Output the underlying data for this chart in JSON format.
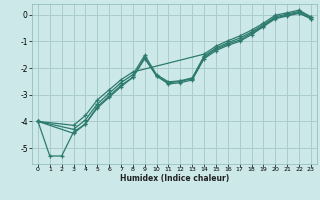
{
  "title": "",
  "xlabel": "Humidex (Indice chaleur)",
  "ylabel": "",
  "background_color": "#cce8e8",
  "grid_color": "#aacccc",
  "line_color": "#2d7a6e",
  "xlim": [
    -0.5,
    23.5
  ],
  "ylim": [
    -5.6,
    0.4
  ],
  "xticks": [
    0,
    1,
    2,
    3,
    4,
    5,
    6,
    7,
    8,
    9,
    10,
    11,
    12,
    13,
    14,
    15,
    16,
    17,
    18,
    19,
    20,
    21,
    22,
    23
  ],
  "yticks": [
    0,
    -1,
    -2,
    -3,
    -4,
    -5
  ],
  "series": [
    {
      "x": [
        0,
        1,
        2,
        3,
        4,
        5,
        6,
        7,
        8,
        9,
        10,
        11,
        12,
        13,
        14,
        15,
        16,
        17,
        18,
        19,
        20,
        21,
        22,
        23
      ],
      "y": [
        -4.0,
        -5.3,
        -5.3,
        -4.4,
        -4.1,
        -3.5,
        -3.1,
        -2.7,
        -2.35,
        -1.65,
        -2.3,
        -2.6,
        -2.55,
        -2.45,
        -1.65,
        -1.35,
        -1.15,
        -1.0,
        -0.75,
        -0.45,
        -0.15,
        -0.05,
        0.05,
        -0.15
      ]
    },
    {
      "x": [
        0,
        3,
        4,
        5,
        6,
        7,
        8,
        9,
        10,
        11,
        12,
        13,
        14,
        15,
        16,
        17,
        18,
        19,
        20,
        21,
        22,
        23
      ],
      "y": [
        -4.0,
        -4.45,
        -4.1,
        -3.45,
        -3.05,
        -2.65,
        -2.35,
        -1.6,
        -2.3,
        -2.55,
        -2.5,
        -2.4,
        -1.6,
        -1.3,
        -1.1,
        -0.95,
        -0.7,
        -0.42,
        -0.12,
        -0.02,
        0.08,
        -0.15
      ]
    },
    {
      "x": [
        0,
        3,
        4,
        5,
        6,
        7,
        8,
        9,
        10,
        11,
        12,
        13,
        14,
        15,
        16,
        17,
        18,
        19,
        20,
        21,
        22,
        23
      ],
      "y": [
        -4.0,
        -4.3,
        -3.95,
        -3.35,
        -2.95,
        -2.55,
        -2.25,
        -1.52,
        -2.25,
        -2.52,
        -2.48,
        -2.37,
        -1.55,
        -1.25,
        -1.05,
        -0.88,
        -0.65,
        -0.38,
        -0.08,
        0.02,
        0.12,
        -0.1
      ]
    },
    {
      "x": [
        0,
        3,
        4,
        5,
        6,
        7,
        8,
        14,
        15,
        16,
        17,
        18,
        19,
        20,
        21,
        22,
        23
      ],
      "y": [
        -4.0,
        -4.15,
        -3.78,
        -3.2,
        -2.82,
        -2.44,
        -2.15,
        -1.48,
        -1.18,
        -0.98,
        -0.8,
        -0.58,
        -0.32,
        -0.02,
        0.07,
        0.17,
        -0.08
      ]
    }
  ]
}
